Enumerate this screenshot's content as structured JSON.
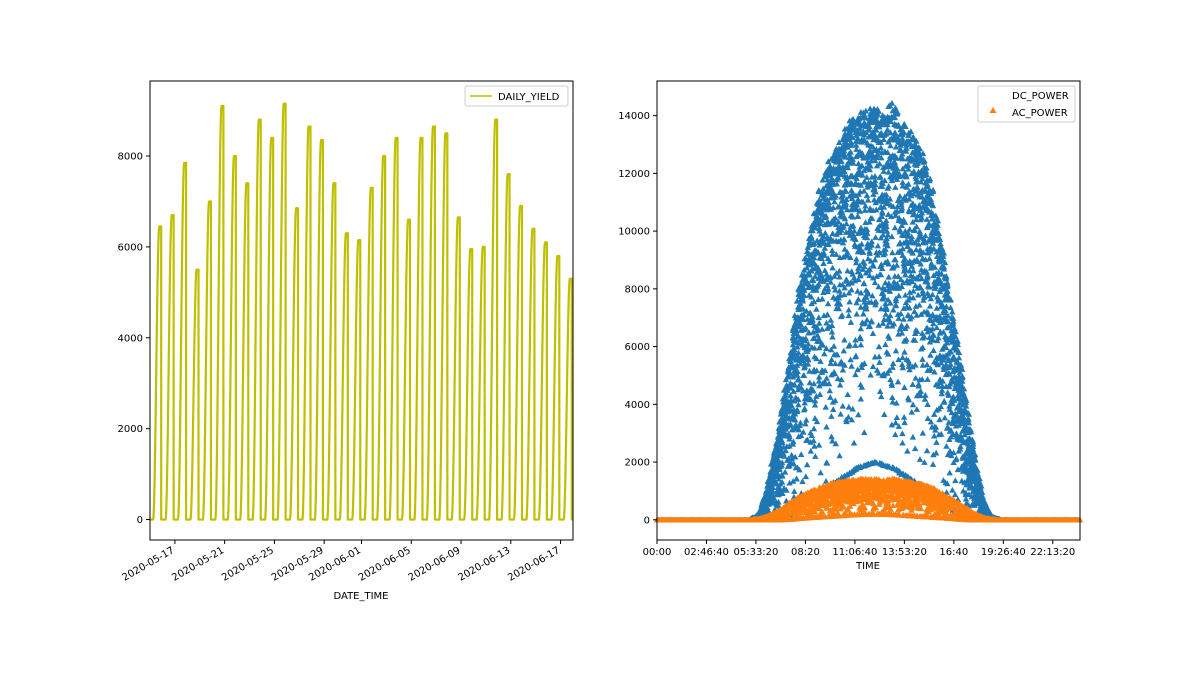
{
  "chart_data": [
    {
      "type": "line",
      "xlabel": "DATE_TIME",
      "ylabel": "",
      "x_tick_labels": [
        "2020-05-17",
        "2020-05-21",
        "2020-05-25",
        "2020-05-29",
        "2020-06-01",
        "2020-06-05",
        "2020-06-09",
        "2020-06-13",
        "2020-06-17"
      ],
      "x_ticks": [
        "2020-05-17",
        "2020-05-21",
        "2020-05-25",
        "2020-05-29",
        "2020-06-01",
        "2020-06-05",
        "2020-06-09",
        "2020-06-13",
        "2020-06-17"
      ],
      "xlim": [
        "2020-05-15T00:00",
        "2020-06-18T00:00"
      ],
      "ylim": [
        -450,
        9650
      ],
      "y_ticks": [
        0,
        2000,
        4000,
        6000,
        8000
      ],
      "legend": {
        "position": "upper right",
        "entries": [
          "DAILY_YIELD"
        ]
      },
      "series": [
        {
          "name": "DAILY_YIELD",
          "color": "#bfbf00",
          "daily_peak_dates": [
            "2020-05-15",
            "2020-05-16",
            "2020-05-17",
            "2020-05-18",
            "2020-05-19",
            "2020-05-20",
            "2020-05-21",
            "2020-05-22",
            "2020-05-23",
            "2020-05-24",
            "2020-05-25",
            "2020-05-26",
            "2020-05-27",
            "2020-05-28",
            "2020-05-29",
            "2020-05-30",
            "2020-05-31",
            "2020-06-01",
            "2020-06-02",
            "2020-06-03",
            "2020-06-04",
            "2020-06-05",
            "2020-06-06",
            "2020-06-07",
            "2020-06-08",
            "2020-06-09",
            "2020-06-10",
            "2020-06-11",
            "2020-06-12",
            "2020-06-13",
            "2020-06-14",
            "2020-06-15",
            "2020-06-16",
            "2020-06-17"
          ],
          "daily_peak_values": [
            6450,
            6700,
            7850,
            5500,
            7000,
            9100,
            8000,
            7400,
            8800,
            8400,
            9150,
            6850,
            8650,
            8350,
            7400,
            6300,
            6150,
            7300,
            8000,
            8400,
            6600,
            8400,
            8650,
            8500,
            6650,
            5950,
            6000,
            8800,
            7600,
            6900,
            6400,
            6100,
            5800,
            5300
          ]
        }
      ]
    },
    {
      "type": "scatter",
      "xlabel": "TIME",
      "ylabel": "",
      "x_tick_labels": [
        "00:00",
        "02:46:40",
        "05:33:20",
        "08:20",
        "11:06:40",
        "13:53:20",
        "16:40",
        "19:26:40",
        "22:13:20"
      ],
      "x_ticks_hours": [
        0,
        2.7778,
        5.5556,
        8.3333,
        11.1111,
        13.8889,
        16.6667,
        19.4444,
        22.2222
      ],
      "xlim_hours": [
        0,
        23.75
      ],
      "ylim": [
        -700,
        15200
      ],
      "y_ticks": [
        0,
        2000,
        4000,
        6000,
        8000,
        10000,
        12000,
        14000
      ],
      "legend": {
        "position": "upper right",
        "entries": [
          "DC_POWER",
          "AC_POWER"
        ]
      },
      "series": [
        {
          "name": "DC_POWER",
          "color": "#1f77b4",
          "marker": "triangle",
          "time_hours": [
            0,
            5.25,
            5.75,
            6.25,
            6.75,
            7.25,
            7.75,
            8.25,
            8.75,
            9.25,
            9.75,
            10.25,
            10.75,
            11.25,
            11.75,
            12.25,
            12.75,
            13.25,
            13.75,
            14.25,
            14.75,
            15.25,
            15.75,
            16.25,
            16.75,
            17.25,
            17.75,
            18.25,
            18.75,
            19.25,
            23.75
          ],
          "max_values": [
            0,
            0,
            200,
            1200,
            2800,
            4800,
            7000,
            9000,
            10500,
            11800,
            12500,
            13200,
            13700,
            14200,
            14300,
            14250,
            14100,
            14500,
            13800,
            13500,
            13000,
            12000,
            10500,
            8500,
            6500,
            4500,
            2500,
            800,
            100,
            0,
            0
          ],
          "min_values": [
            0,
            0,
            0,
            0,
            0,
            100,
            300,
            600,
            800,
            1000,
            1200,
            1400,
            1600,
            1800,
            1900,
            2000,
            1900,
            1800,
            1600,
            1400,
            1200,
            1000,
            800,
            600,
            300,
            100,
            0,
            0,
            0,
            0,
            0
          ]
        },
        {
          "name": "AC_POWER",
          "color": "#ff7f0e",
          "marker": "triangle",
          "time_hours": [
            0,
            5.25,
            5.75,
            6.25,
            6.75,
            7.25,
            7.75,
            8.25,
            8.75,
            9.25,
            9.75,
            10.25,
            10.75,
            11.25,
            11.75,
            12.25,
            12.75,
            13.25,
            13.75,
            14.25,
            14.75,
            15.25,
            15.75,
            16.25,
            16.75,
            17.25,
            17.75,
            18.25,
            18.75,
            19.25,
            23.75
          ],
          "max_values": [
            0,
            0,
            20,
            120,
            280,
            480,
            700,
            880,
            1020,
            1150,
            1250,
            1320,
            1370,
            1400,
            1420,
            1410,
            1390,
            1430,
            1360,
            1320,
            1260,
            1170,
            1020,
            830,
            640,
            440,
            240,
            80,
            10,
            0,
            0
          ],
          "min_values": [
            0,
            0,
            0,
            0,
            0,
            10,
            30,
            60,
            80,
            100,
            120,
            140,
            160,
            180,
            190,
            200,
            190,
            180,
            160,
            140,
            120,
            100,
            80,
            60,
            30,
            10,
            0,
            0,
            0,
            0,
            0
          ]
        }
      ]
    }
  ]
}
